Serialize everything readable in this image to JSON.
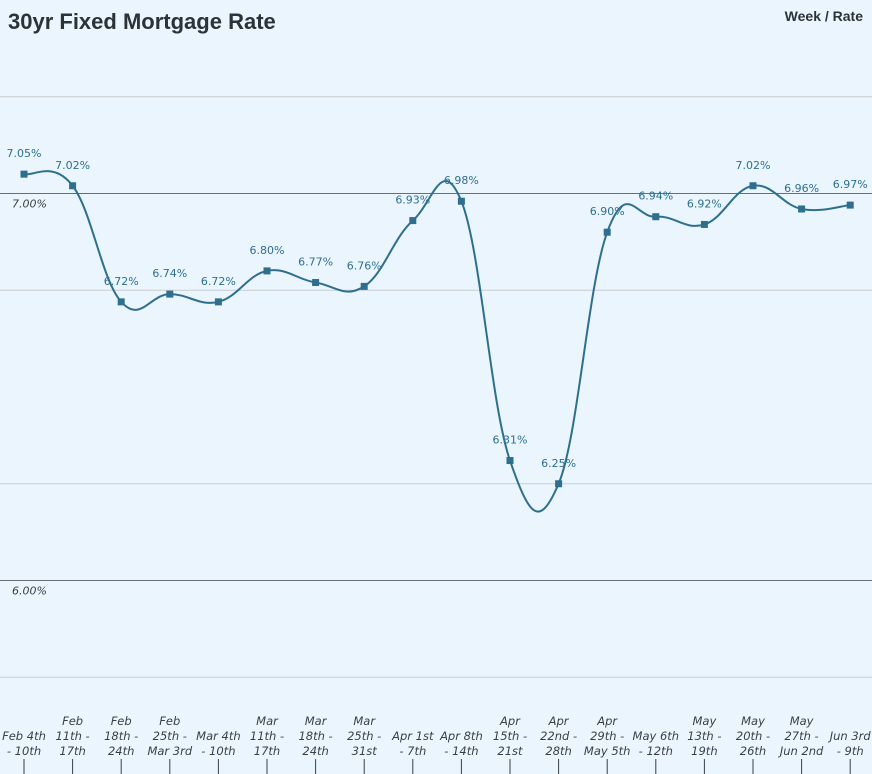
{
  "chart_data": {
    "type": "line",
    "title": "30yr Fixed Mortgage Rate",
    "legend": {
      "text": "Week / Rate",
      "placement": "top-right"
    },
    "categories": [
      [
        "Feb 4th",
        "- 10th"
      ],
      [
        "Feb",
        "11th -",
        "17th"
      ],
      [
        "Feb",
        "18th -",
        "24th"
      ],
      [
        "Feb",
        "25th -",
        "Mar 3rd"
      ],
      [
        "Mar 4th",
        "- 10th"
      ],
      [
        "Mar",
        "11th -",
        "17th"
      ],
      [
        "Mar",
        "18th -",
        "24th"
      ],
      [
        "Mar",
        "25th -",
        "31st"
      ],
      [
        "Apr 1st",
        "- 7th"
      ],
      [
        "Apr 8th",
        "- 14th"
      ],
      [
        "Apr",
        "15th -",
        "21st"
      ],
      [
        "Apr",
        "22nd -",
        "28th"
      ],
      [
        "Apr",
        "29th -",
        "May 5th"
      ],
      [
        "May 6th",
        "- 12th"
      ],
      [
        "May",
        "13th -",
        "19th"
      ],
      [
        "May",
        "20th -",
        "26th"
      ],
      [
        "May",
        "27th -",
        "Jun 2nd"
      ],
      [
        "Jun 3rd",
        "- 9th"
      ]
    ],
    "values": [
      7.05,
      7.02,
      6.72,
      6.74,
      6.72,
      6.8,
      6.77,
      6.76,
      6.93,
      6.98,
      6.31,
      6.25,
      6.9,
      6.94,
      6.92,
      7.02,
      6.96,
      6.97
    ],
    "data_labels": [
      "7.05%",
      "7.02%",
      "6.72%",
      "6.74%",
      "6.72%",
      "6.80%",
      "6.77%",
      "6.76%",
      "6.93%",
      "6.98%",
      "6.31%",
      "6.25%",
      "6.90%",
      "6.94%",
      "6.92%",
      "7.02%",
      "6.96%",
      "6.97%"
    ],
    "y_ticks": [
      {
        "value": 7.0,
        "label": "7.00%"
      },
      {
        "value": 6.0,
        "label": "6.00%"
      }
    ],
    "ylim": [
      5.5,
      7.5
    ],
    "grid": true,
    "colors": {
      "background": "#eaf5fd",
      "line": "#2e6f8e",
      "marker": "#2e6f8e",
      "major_grid": "#6b6f73",
      "minor_grid": "#c9cdd1",
      "text": "#2c3338"
    }
  }
}
